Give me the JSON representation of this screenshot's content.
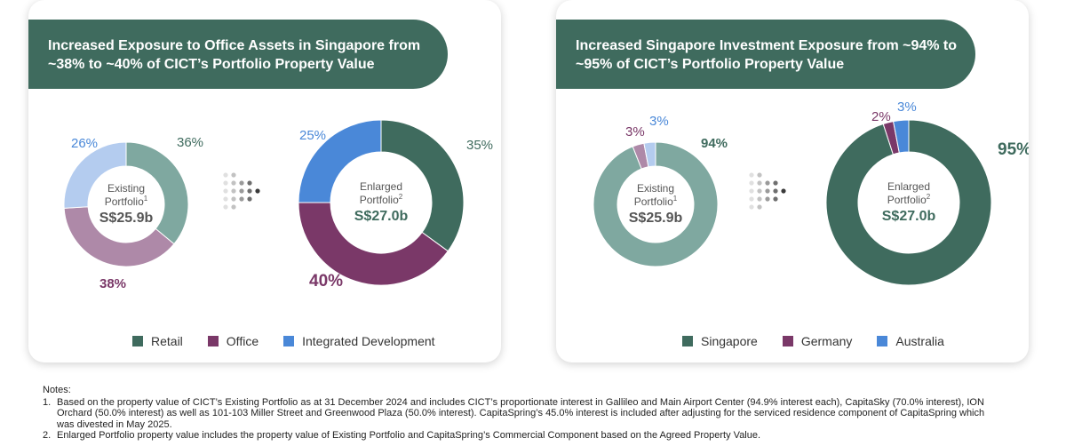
{
  "colors": {
    "banner": "#3f6b5e",
    "dark_teal": "#3f6b5e",
    "purple": "#7a3868",
    "blue": "#4a88d8",
    "light_teal": "#7fa8a0",
    "light_purple": "#ae89a8",
    "light_blue": "#b4ccef"
  },
  "panels": [
    {
      "title_line1": "Increased Exposure to Office Assets in Singapore from",
      "title_line2": "~38% to ~40% of CICT’s Portfolio Property Value",
      "legend": [
        {
          "label": "Retail",
          "color": "#3f6b5e"
        },
        {
          "label": "Office",
          "color": "#7a3868"
        },
        {
          "label": "Integrated Development",
          "color": "#4a88d8"
        }
      ]
    },
    {
      "title_line1": "Increased Singapore Investment Exposure from ~94% to",
      "title_line2": "~95% of CICT’s Portfolio Property Value",
      "legend": [
        {
          "label": "Singapore",
          "color": "#3f6b5e"
        },
        {
          "label": "Germany",
          "color": "#7a3868"
        },
        {
          "label": "Australia",
          "color": "#4a88d8"
        }
      ]
    }
  ],
  "chart_data": [
    {
      "type": "pie",
      "categories": [
        "Retail",
        "Office",
        "Integrated Development"
      ],
      "values": [
        36,
        38,
        26
      ],
      "colors": [
        "#7fa8a0",
        "#ae89a8",
        "#b4ccef"
      ],
      "label_colors": [
        "#3f6b5e",
        "#7a3868",
        "#4a88d8"
      ],
      "labels": [
        "36%",
        "38%",
        "26%"
      ],
      "label_bold": [
        false,
        true,
        false
      ],
      "center": [
        "Existing",
        "Portfolio",
        "1",
        "S$25.9b"
      ]
    },
    {
      "type": "pie",
      "categories": [
        "Retail",
        "Office",
        "Integrated Development"
      ],
      "values": [
        35,
        40,
        25
      ],
      "colors": [
        "#3f6b5e",
        "#7a3868",
        "#4a88d8"
      ],
      "label_colors": [
        "#3f6b5e",
        "#7a3868",
        "#4a88d8"
      ],
      "labels": [
        "35%",
        "40%",
        "25%"
      ],
      "label_bold": [
        false,
        true,
        false
      ],
      "center": [
        "Enlarged",
        "Portfolio",
        "2",
        "S$27.0b"
      ]
    },
    {
      "type": "pie",
      "categories": [
        "Singapore",
        "Germany",
        "Australia"
      ],
      "values": [
        94,
        3,
        3
      ],
      "colors": [
        "#7fa8a0",
        "#ae89a8",
        "#b4ccef"
      ],
      "label_colors": [
        "#3f6b5e",
        "#7a3868",
        "#4a88d8"
      ],
      "labels": [
        "94%",
        "3%",
        "3%"
      ],
      "label_bold": [
        true,
        false,
        false
      ],
      "center": [
        "Existing",
        "Portfolio",
        "1",
        "S$25.9b"
      ]
    },
    {
      "type": "pie",
      "categories": [
        "Singapore",
        "Germany",
        "Australia"
      ],
      "values": [
        95,
        2,
        3
      ],
      "colors": [
        "#3f6b5e",
        "#7a3868",
        "#4a88d8"
      ],
      "label_colors": [
        "#3f6b5e",
        "#7a3868",
        "#4a88d8"
      ],
      "labels": [
        "95%",
        "2%",
        "3%"
      ],
      "label_bold": [
        true,
        false,
        false
      ],
      "center": [
        "Enlarged",
        "Portfolio",
        "2",
        "S$27.0b"
      ]
    }
  ],
  "notes": {
    "title": "Notes:",
    "items": [
      {
        "num": "1.",
        "lines": [
          "Based on the property value of CICT’s Existing Portfolio as at 31 December 2024 and includes CICT’s proportionate interest in Gallileo and Main Airport Center (94.9% interest each), CapitaSky (70.0% interest), ION",
          "Orchard (50.0% interest) as well as 101-103 Miller Street and Greenwood Plaza (50.0% interest). CapitaSpring’s 45.0% interest is included after adjusting for the serviced residence component of CapitaSpring which",
          "was divested in May 2025."
        ]
      },
      {
        "num": "2.",
        "lines": [
          "Enlarged Portfolio property value includes the property value of Existing Portfolio and CapitaSpring’s Commercial Component based on the Agreed Property Value."
        ]
      }
    ]
  }
}
